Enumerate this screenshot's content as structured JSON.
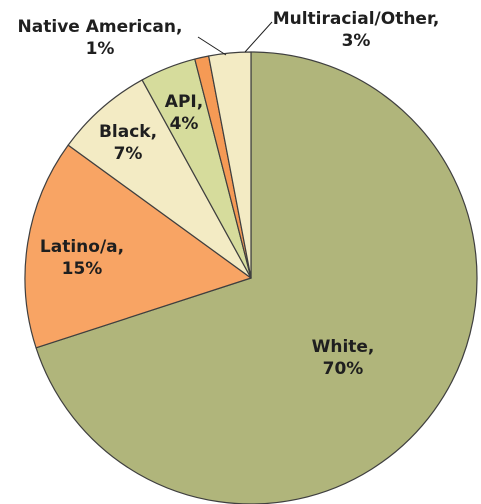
{
  "chart_data": {
    "type": "pie",
    "title": "",
    "start_angle_deg": 0,
    "direction": "clockwise",
    "slices": [
      {
        "label": "White",
        "value": 70,
        "value_text": "70%",
        "color": "#b0b57b"
      },
      {
        "label": "Latino/a",
        "value": 15,
        "value_text": "15%",
        "color": "#f8a464"
      },
      {
        "label": "Black",
        "value": 7,
        "value_text": "7%",
        "color": "#f3ebc4"
      },
      {
        "label": "API",
        "value": 4,
        "value_text": "4%",
        "color": "#d6dc9c"
      },
      {
        "label": "Native American",
        "value": 1,
        "value_text": "1%",
        "color": "#f59a55"
      },
      {
        "label": "Multiracial/Other",
        "value": 3,
        "value_text": "3%",
        "color": "#f3ebc4"
      }
    ]
  }
}
